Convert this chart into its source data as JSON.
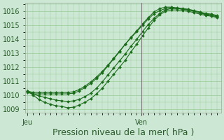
{
  "background_color": "#cce8d4",
  "grid_color": "#99cc99",
  "line_color": "#1a6b1a",
  "marker_color": "#1a6b1a",
  "vline_color": "#777777",
  "xlabel": "Pression niveau de la mer( hPa )",
  "xlabel_fontsize": 9,
  "tick_label_fontsize": 7,
  "day_labels": [
    "Jeu",
    "Ven"
  ],
  "day_positions": [
    0.0,
    0.595
  ],
  "ylim": [
    1008.75,
    1016.6
  ],
  "yticks": [
    1009,
    1010,
    1011,
    1012,
    1013,
    1014,
    1015,
    1016
  ],
  "xlim": [
    -0.01,
    1.01
  ],
  "series": [
    {
      "x": [
        0.0,
        0.03,
        0.06,
        0.09,
        0.12,
        0.15,
        0.18,
        0.21,
        0.24,
        0.27,
        0.3,
        0.33,
        0.36,
        0.39,
        0.42,
        0.45,
        0.48,
        0.51,
        0.54,
        0.57,
        0.6,
        0.63,
        0.66,
        0.69,
        0.72,
        0.75,
        0.78,
        0.81,
        0.84,
        0.87,
        0.9,
        0.93,
        0.96,
        0.99
      ],
      "y": [
        1010.3,
        1010.1,
        1009.95,
        1009.85,
        1009.75,
        1009.65,
        1009.6,
        1009.55,
        1009.6,
        1009.7,
        1009.9,
        1010.15,
        1010.5,
        1010.95,
        1011.45,
        1011.95,
        1012.45,
        1012.95,
        1013.5,
        1014.0,
        1014.55,
        1015.05,
        1015.5,
        1015.85,
        1016.1,
        1016.2,
        1016.2,
        1016.15,
        1016.1,
        1016.0,
        1015.9,
        1015.75,
        1015.7,
        1015.6
      ]
    },
    {
      "x": [
        0.0,
        0.03,
        0.06,
        0.09,
        0.12,
        0.15,
        0.18,
        0.21,
        0.24,
        0.27,
        0.3,
        0.33,
        0.36,
        0.39,
        0.42,
        0.45,
        0.48,
        0.51,
        0.54,
        0.57,
        0.6,
        0.63,
        0.66,
        0.69,
        0.72,
        0.75,
        0.78,
        0.81,
        0.84,
        0.87,
        0.9,
        0.93,
        0.96,
        0.99
      ],
      "y": [
        1010.3,
        1010.0,
        1009.7,
        1009.5,
        1009.35,
        1009.25,
        1009.2,
        1009.1,
        1009.15,
        1009.3,
        1009.5,
        1009.75,
        1010.1,
        1010.5,
        1011.0,
        1011.5,
        1012.0,
        1012.5,
        1013.1,
        1013.65,
        1014.25,
        1014.8,
        1015.35,
        1015.75,
        1016.0,
        1016.1,
        1016.1,
        1016.05,
        1016.0,
        1015.9,
        1015.8,
        1015.7,
        1015.65,
        1015.55
      ]
    },
    {
      "x": [
        0.0,
        0.03,
        0.06,
        0.09,
        0.12,
        0.15,
        0.18,
        0.21,
        0.24,
        0.27,
        0.3,
        0.33,
        0.36,
        0.39,
        0.42,
        0.45,
        0.48,
        0.51,
        0.54,
        0.57,
        0.6,
        0.63,
        0.66,
        0.69,
        0.72,
        0.75,
        0.78,
        0.81,
        0.84,
        0.87,
        0.9,
        0.93,
        0.96,
        0.99
      ],
      "y": [
        1010.2,
        1010.1,
        1010.1,
        1010.1,
        1010.1,
        1010.1,
        1010.1,
        1010.1,
        1010.15,
        1010.3,
        1010.55,
        1010.85,
        1011.2,
        1011.6,
        1012.1,
        1012.6,
        1013.1,
        1013.65,
        1014.15,
        1014.6,
        1015.1,
        1015.55,
        1015.95,
        1016.2,
        1016.3,
        1016.3,
        1016.25,
        1016.2,
        1016.15,
        1016.05,
        1015.95,
        1015.85,
        1015.8,
        1015.7
      ]
    },
    {
      "x": [
        0.0,
        0.03,
        0.06,
        0.09,
        0.12,
        0.15,
        0.18,
        0.21,
        0.24,
        0.27,
        0.3,
        0.33,
        0.36,
        0.39,
        0.42,
        0.45,
        0.48,
        0.51,
        0.54,
        0.57,
        0.6,
        0.63,
        0.66,
        0.69,
        0.72,
        0.75,
        0.78,
        0.81,
        0.84,
        0.87,
        0.9,
        0.93,
        0.96,
        0.99
      ],
      "y": [
        1010.3,
        1010.2,
        1010.2,
        1010.2,
        1010.2,
        1010.2,
        1010.2,
        1010.2,
        1010.25,
        1010.4,
        1010.65,
        1010.95,
        1011.3,
        1011.7,
        1012.15,
        1012.65,
        1013.15,
        1013.65,
        1014.1,
        1014.55,
        1015.0,
        1015.45,
        1015.82,
        1016.05,
        1016.2,
        1016.25,
        1016.2,
        1016.15,
        1016.1,
        1016.0,
        1015.9,
        1015.8,
        1015.75,
        1015.65
      ]
    }
  ]
}
